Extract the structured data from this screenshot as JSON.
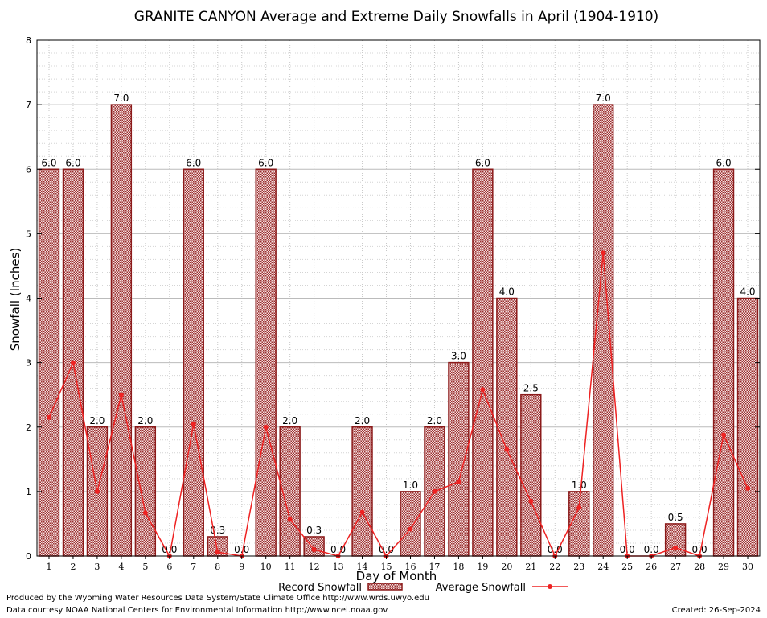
{
  "chart_data": {
    "type": "bar",
    "title": "GRANITE CANYON Average and Extreme Daily Snowfalls in April (1904-1910)",
    "xlabel": "Day of Month",
    "ylabel": "Snowfall (Inches)",
    "ylim": [
      0,
      8
    ],
    "yticks": [
      "0",
      "1",
      "2",
      "3",
      "4",
      "5",
      "6",
      "7",
      "8"
    ],
    "grid": true,
    "legend_placement": "bottom",
    "categories": [
      "1",
      "2",
      "3",
      "4",
      "5",
      "6",
      "7",
      "8",
      "9",
      "10",
      "11",
      "12",
      "13",
      "14",
      "15",
      "16",
      "17",
      "18",
      "19",
      "20",
      "21",
      "22",
      "23",
      "24",
      "25",
      "26",
      "27",
      "28",
      "29",
      "30"
    ],
    "series": [
      {
        "name": "Record Snowfall",
        "kind": "bar",
        "color": "#8b1a1a",
        "values": [
          6.0,
          6.0,
          2.0,
          7.0,
          2.0,
          0.0,
          6.0,
          0.3,
          0.0,
          6.0,
          2.0,
          0.3,
          0.0,
          2.0,
          0.0,
          1.0,
          2.0,
          3.0,
          6.0,
          4.0,
          2.5,
          0.0,
          1.0,
          7.0,
          0.0,
          0.0,
          0.5,
          0.0,
          6.0,
          4.0
        ],
        "labels": [
          "6.0",
          "6.0",
          "2.0",
          "7.0",
          "2.0",
          "0.0",
          "6.0",
          "0.3",
          "0.0",
          "6.0",
          "2.0",
          "0.3",
          "0.0",
          "2.0",
          "0.0",
          "1.0",
          "2.0",
          "3.0",
          "6.0",
          "4.0",
          "2.5",
          "0.0",
          "1.0",
          "7.0",
          "0.0",
          "0.0",
          "0.5",
          "0.0",
          "6.0",
          "4.0"
        ]
      },
      {
        "name": "Average Snowfall",
        "kind": "line",
        "color": "#ee2222",
        "values": [
          2.15,
          3.0,
          1.0,
          2.5,
          0.67,
          0.0,
          2.05,
          0.06,
          0.0,
          2.0,
          0.57,
          0.1,
          0.0,
          0.68,
          0.0,
          0.42,
          1.0,
          1.15,
          2.58,
          1.65,
          0.85,
          0.0,
          0.75,
          4.7,
          0.0,
          0.0,
          0.13,
          0.0,
          1.88,
          1.05
        ]
      }
    ]
  },
  "footer": {
    "produced_by": "Produced by the Wyoming Water Resources Data System/State Climate Office http://www.wrds.uwyo.edu",
    "courtesy": "Data courtesy NOAA National Centers for Environmental Information http://www.ncei.noaa.gov",
    "created": "Created: 26-Sep-2024"
  }
}
